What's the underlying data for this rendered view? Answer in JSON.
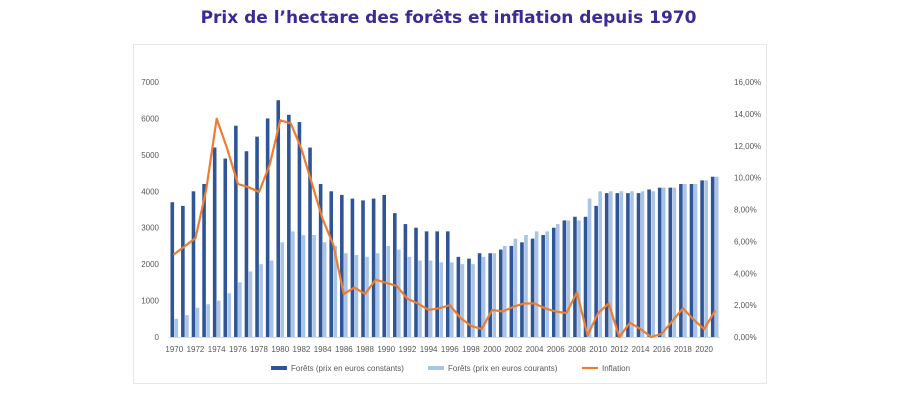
{
  "title": "Prix de l’hectare des forêts et inflation depuis 1970",
  "colors": {
    "title": "#3d2a96",
    "constant": "#2f5597",
    "current": "#a9c4e6",
    "inflation": "#ed7d31"
  },
  "chart_data": {
    "type": "bar",
    "x": [
      1970,
      1971,
      1972,
      1973,
      1974,
      1975,
      1976,
      1977,
      1978,
      1979,
      1980,
      1981,
      1982,
      1983,
      1984,
      1985,
      1986,
      1987,
      1988,
      1989,
      1990,
      1991,
      1992,
      1993,
      1994,
      1995,
      1996,
      1997,
      1998,
      1999,
      2000,
      2001,
      2002,
      2003,
      2004,
      2005,
      2006,
      2007,
      2008,
      2009,
      2010,
      2011,
      2012,
      2013,
      2014,
      2015,
      2016,
      2017,
      2018,
      2019,
      2020,
      2021
    ],
    "x_tick_labels": [
      "1970",
      "1972",
      "1974",
      "1976",
      "1978",
      "1980",
      "1982",
      "1984",
      "1986",
      "1988",
      "1990",
      "1992",
      "1994",
      "1996",
      "1998",
      "2000",
      "2002",
      "2004",
      "2006",
      "2008",
      "2010",
      "2012",
      "2014",
      "2016",
      "2018",
      "2020"
    ],
    "y_tick_labels": [
      "0",
      "1000",
      "2000",
      "3000",
      "4000",
      "5000",
      "6000",
      "7000"
    ],
    "y2_tick_labels": [
      "0,00%",
      "2,00%",
      "4,00%",
      "6,00%",
      "8,00%",
      "10,00%",
      "12,00%",
      "14,00%",
      "16,00%"
    ],
    "ylim": [
      0,
      7000
    ],
    "y2lim": [
      0,
      16
    ],
    "grid": false,
    "legend_position": "bottom",
    "series": [
      {
        "name": "Forêts (prix en euros constants)",
        "type": "bar",
        "axis": "left",
        "values": [
          3700,
          3600,
          4000,
          4200,
          5200,
          4900,
          5800,
          5100,
          5500,
          6000,
          6500,
          6100,
          5900,
          5200,
          4200,
          4000,
          3900,
          3800,
          3750,
          3800,
          3900,
          3400,
          3100,
          3000,
          2900,
          2900,
          2900,
          2200,
          2150,
          2300,
          2300,
          2400,
          2500,
          2600,
          2700,
          2800,
          3000,
          3200,
          3300,
          3300,
          3600,
          3950,
          3950,
          3950,
          3950,
          4050,
          4100,
          4100,
          4200,
          4200,
          4300,
          4400
        ]
      },
      {
        "name": "Forêts (prix en euros courants)",
        "type": "bar",
        "axis": "left",
        "values": [
          500,
          600,
          800,
          900,
          1000,
          1200,
          1500,
          1800,
          2000,
          2100,
          2600,
          2900,
          2800,
          2800,
          2600,
          2500,
          2300,
          2250,
          2200,
          2300,
          2500,
          2400,
          2200,
          2100,
          2100,
          2050,
          2050,
          2000,
          2000,
          2200,
          2300,
          2500,
          2700,
          2800,
          2900,
          2900,
          3100,
          3200,
          3200,
          3800,
          4000,
          4000,
          4000,
          4000,
          4000,
          4000,
          4100,
          4100,
          4200,
          4200,
          4300,
          4400
        ]
      },
      {
        "name": "Inflation",
        "type": "line",
        "axis": "right",
        "values": [
          5.2,
          5.7,
          6.2,
          9.2,
          13.7,
          11.8,
          9.6,
          9.4,
          9.1,
          10.8,
          13.6,
          13.4,
          11.8,
          9.6,
          7.4,
          5.8,
          2.7,
          3.1,
          2.7,
          3.6,
          3.4,
          3.2,
          2.4,
          2.1,
          1.7,
          1.8,
          2.0,
          1.2,
          0.7,
          0.5,
          1.7,
          1.6,
          1.9,
          2.1,
          2.1,
          1.8,
          1.6,
          1.5,
          2.8,
          0.1,
          1.5,
          2.1,
          0.0,
          0.9,
          0.5,
          0.0,
          0.2,
          1.0,
          1.8,
          1.1,
          0.5,
          1.6
        ]
      }
    ]
  }
}
